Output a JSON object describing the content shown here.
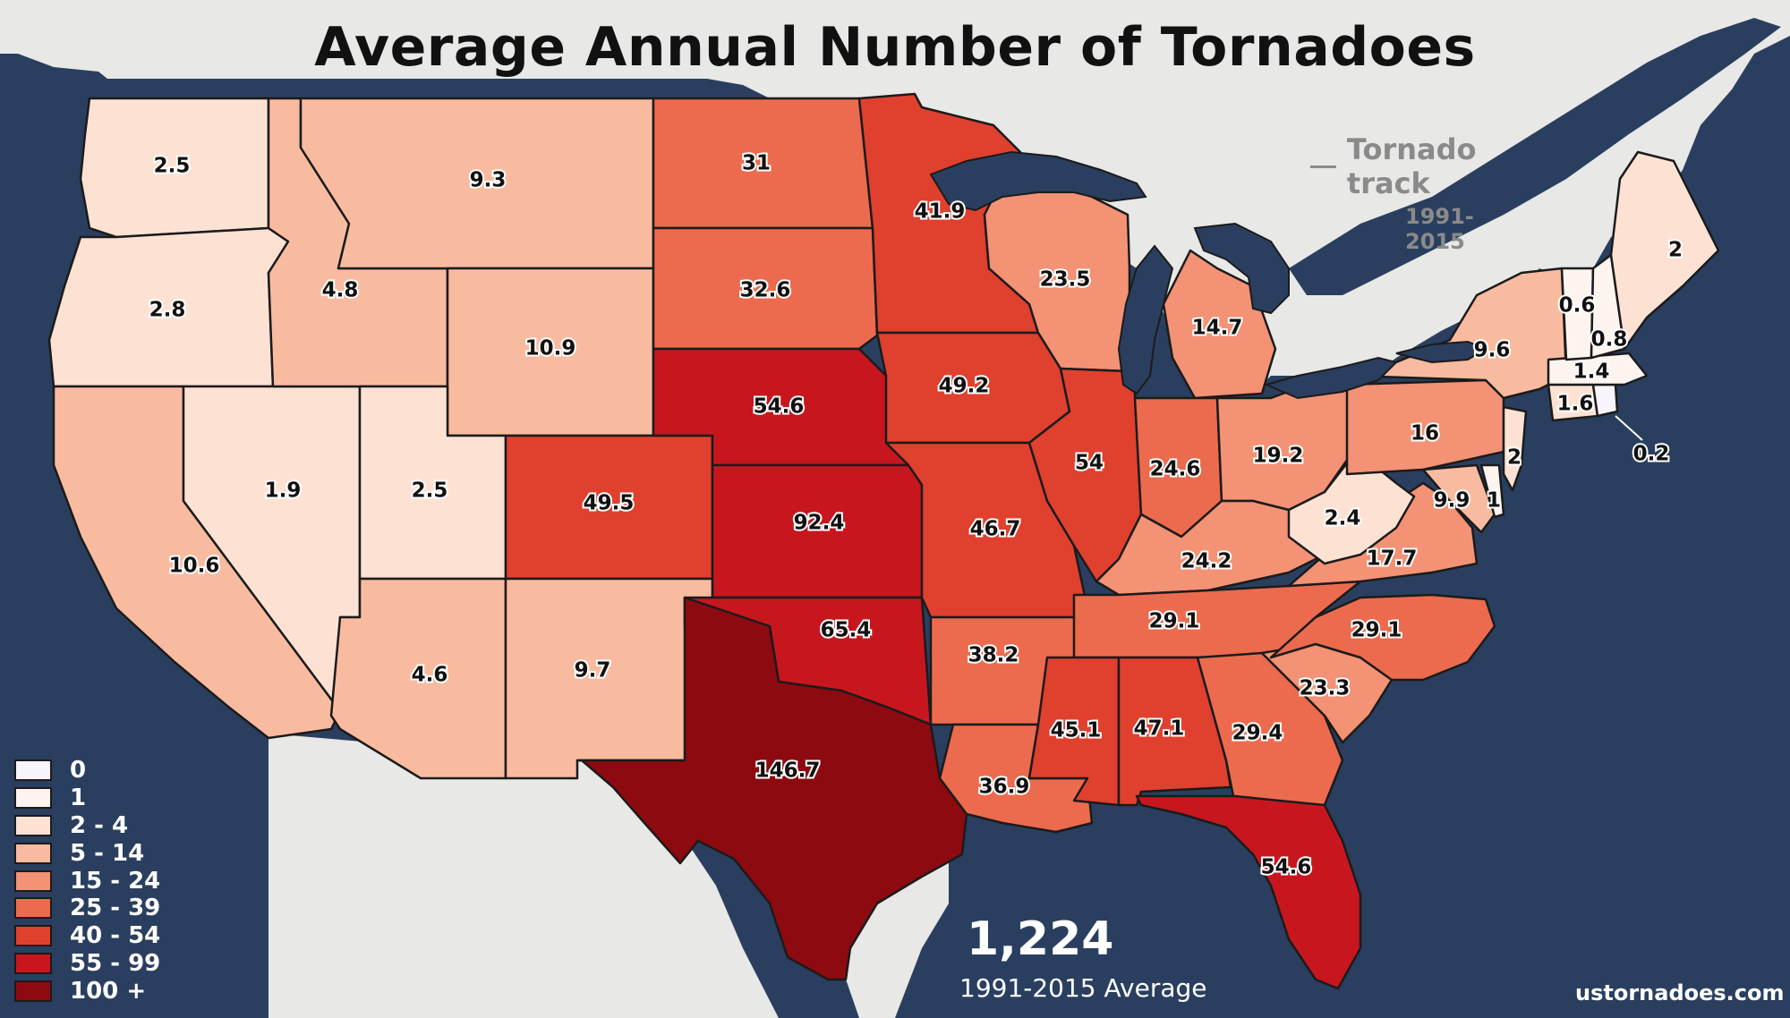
{
  "title": "Average Annual Number of Tornadoes",
  "track_legend": {
    "label": "Tornado track",
    "years": "1991-2015"
  },
  "legend": [
    {
      "label": "0",
      "color": "#f7f4fb"
    },
    {
      "label": "1",
      "color": "#fdf4f0"
    },
    {
      "label": "2 - 4",
      "color": "#fde2d4"
    },
    {
      "label": "5 - 14",
      "color": "#f9bba0"
    },
    {
      "label": "15 - 24",
      "color": "#f39274"
    },
    {
      "label": "25 - 39",
      "color": "#ec6b4e"
    },
    {
      "label": "40 - 54",
      "color": "#e0402e"
    },
    {
      "label": "55 - 99",
      "color": "#c8161f"
    },
    {
      "label": "100 +",
      "color": "#8d0a10"
    }
  ],
  "total": {
    "value": "1,224",
    "caption": "1991-2015 Average"
  },
  "credit": "ustornadoes.com",
  "colors": {
    "ocean": "#2a3f5f",
    "land": "#e8e8e6",
    "border": "#1b1b1b",
    "track": "#8c8c8c"
  },
  "states": [
    {
      "abbr": "WA",
      "value": "2.5"
    },
    {
      "abbr": "OR",
      "value": "2.8"
    },
    {
      "abbr": "CA",
      "value": "10.6"
    },
    {
      "abbr": "NV",
      "value": "1.9"
    },
    {
      "abbr": "ID",
      "value": "4.8"
    },
    {
      "abbr": "MT",
      "value": "9.3"
    },
    {
      "abbr": "WY",
      "value": "10.9"
    },
    {
      "abbr": "UT",
      "value": "2.5"
    },
    {
      "abbr": "AZ",
      "value": "4.6"
    },
    {
      "abbr": "CO",
      "value": "49.5"
    },
    {
      "abbr": "NM",
      "value": "9.7"
    },
    {
      "abbr": "ND",
      "value": "31"
    },
    {
      "abbr": "SD",
      "value": "32.6"
    },
    {
      "abbr": "NE",
      "value": "54.6"
    },
    {
      "abbr": "KS",
      "value": "92.4"
    },
    {
      "abbr": "OK",
      "value": "65.4"
    },
    {
      "abbr": "TX",
      "value": "146.7"
    },
    {
      "abbr": "MN",
      "value": "41.9"
    },
    {
      "abbr": "IA",
      "value": "49.2"
    },
    {
      "abbr": "MO",
      "value": "46.7"
    },
    {
      "abbr": "AR",
      "value": "38.2"
    },
    {
      "abbr": "LA",
      "value": "36.9"
    },
    {
      "abbr": "WI",
      "value": "23.5"
    },
    {
      "abbr": "IL",
      "value": "54"
    },
    {
      "abbr": "MI",
      "value": "14.7"
    },
    {
      "abbr": "IN",
      "value": "24.6"
    },
    {
      "abbr": "OH",
      "value": "19.2"
    },
    {
      "abbr": "KY",
      "value": "24.2"
    },
    {
      "abbr": "TN",
      "value": "29.1"
    },
    {
      "abbr": "MS",
      "value": "45.1"
    },
    {
      "abbr": "AL",
      "value": "47.1"
    },
    {
      "abbr": "GA",
      "value": "29.4"
    },
    {
      "abbr": "FL",
      "value": "54.6"
    },
    {
      "abbr": "SC",
      "value": "23.3"
    },
    {
      "abbr": "NC",
      "value": "29.1"
    },
    {
      "abbr": "VA",
      "value": "17.7"
    },
    {
      "abbr": "WV",
      "value": "2.4"
    },
    {
      "abbr": "PA",
      "value": "16"
    },
    {
      "abbr": "NY",
      "value": "9.6"
    },
    {
      "abbr": "MD",
      "value": "9.9"
    },
    {
      "abbr": "DE",
      "value": "1"
    },
    {
      "abbr": "NJ",
      "value": "2"
    },
    {
      "abbr": "CT",
      "value": "1.6"
    },
    {
      "abbr": "RI",
      "value": "0.2"
    },
    {
      "abbr": "MA",
      "value": "1.4"
    },
    {
      "abbr": "VT",
      "value": "0.6"
    },
    {
      "abbr": "NH",
      "value": "0.8"
    },
    {
      "abbr": "ME",
      "value": "2"
    }
  ]
}
